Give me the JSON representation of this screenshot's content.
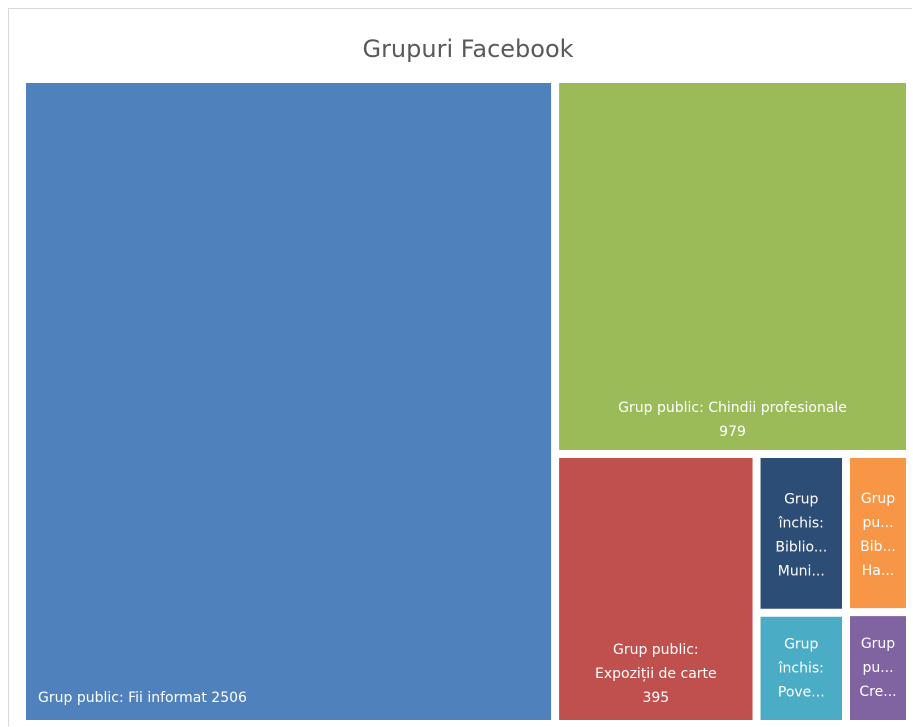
{
  "chart_data": {
    "type": "treemap",
    "title": "Grupuri Facebook",
    "categories": [
      [
        "Grup public: Fii informat"
      ],
      [
        "Grup public: Chindii profesionale"
      ],
      [
        "Grup public:",
        "Expoziții de carte"
      ],
      [
        "Grup",
        "închis:",
        "Biblio...",
        "Muni..."
      ],
      [
        "Grup",
        "pu...",
        "Bib...",
        "Ha..."
      ],
      [
        "Grup",
        "închis:",
        "Pove..."
      ],
      [
        "Grup",
        "pu...",
        "Cre..."
      ]
    ],
    "values": [
      2506,
      979,
      395,
      101,
      80,
      70,
      56
    ],
    "colors": [
      "#4f81bd",
      "#9bbb59",
      "#c0504d",
      "#2c4d75",
      "#f79646",
      "#4bacc6",
      "#8064a2"
    ]
  }
}
